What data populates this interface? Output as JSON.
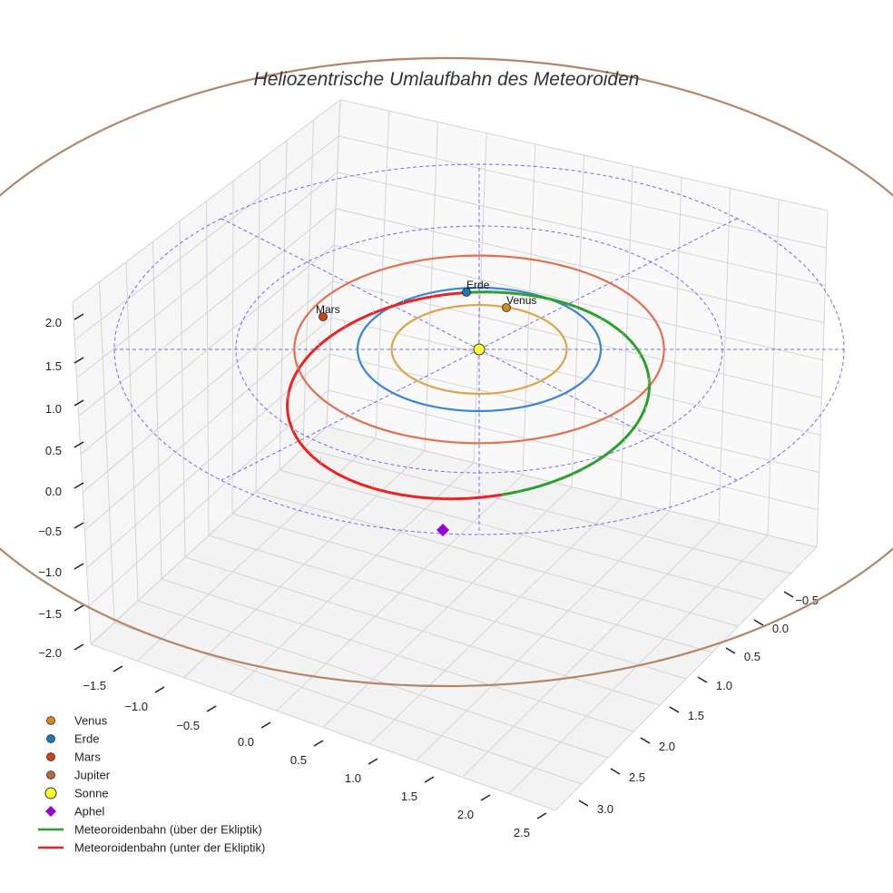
{
  "chart_data": {
    "type": "3d-line",
    "title": "Heliozentrische Umlaufbahn des Meteoroiden",
    "axes": {
      "x_ticks": [
        "−1.5",
        "−1.0",
        "−0.5",
        "0.0",
        "0.5",
        "1.0",
        "1.5",
        "2.0",
        "2.5"
      ],
      "y_ticks": [
        "−0.5",
        "0.0",
        "0.5",
        "1.0",
        "1.5",
        "2.0",
        "2.5",
        "3.0"
      ],
      "z_ticks": [
        "2.0",
        "1.5",
        "1.0",
        "0.5",
        "0.0",
        "−0.5",
        "−1.0",
        "−1.5",
        "−2.0"
      ],
      "xlim": [
        -1.8,
        2.6
      ],
      "ylim": [
        -0.8,
        3.2
      ],
      "zlim": [
        -2.2,
        2.2
      ]
    },
    "reference_grid": {
      "type": "polar-ecliptic",
      "radii_au": [
        1.0,
        2.0,
        3.0
      ],
      "spokes": 8,
      "color": "#5555ee"
    },
    "bodies": [
      {
        "name": "Venus",
        "orbit_radius_au": 0.72,
        "color": "#d08a22",
        "orbit_color": "#d9a64a",
        "position_label": "Venus"
      },
      {
        "name": "Erde",
        "orbit_radius_au": 1.0,
        "color": "#1f77b4",
        "orbit_color": "#3a86d6",
        "position_label": "Erde"
      },
      {
        "name": "Mars",
        "orbit_radius_au": 1.52,
        "color": "#cc4411",
        "orbit_color": "#e07050",
        "position_label": "Mars"
      },
      {
        "name": "Jupiter",
        "orbit_radius_au": 5.2,
        "color": "#b36a3a",
        "orbit_color": "#b3866a",
        "position_label": ""
      }
    ],
    "sun": {
      "name": "Sonne",
      "color": "#ffff33"
    },
    "meteoroid": {
      "perihelion_au": 0.92,
      "aphelion_au": 2.4,
      "inclination_deg": 8,
      "above_label": "Meteoroidenbahn (über der Ekliptik)",
      "above_color": "#2ca02c",
      "below_label": "Meteoroidenbahn (unter der Ekliptik)",
      "below_color": "#ee2222"
    },
    "aphel": {
      "name": "Aphel",
      "color": "#9400d3"
    },
    "legend": [
      {
        "label": "Venus",
        "kind": "dot",
        "color": "#d08a22"
      },
      {
        "label": "Erde",
        "kind": "dot",
        "color": "#1f77b4"
      },
      {
        "label": "Mars",
        "kind": "dot",
        "color": "#cc4411"
      },
      {
        "label": "Jupiter",
        "kind": "dot",
        "color": "#b36a3a"
      },
      {
        "label": "Sonne",
        "kind": "sun",
        "color": "#ffff33"
      },
      {
        "label": "Aphel",
        "kind": "diamond",
        "color": "#9400d3"
      },
      {
        "label": "Meteoroidenbahn (über der Ekliptik)",
        "kind": "line",
        "color": "#2ca02c"
      },
      {
        "label": "Meteoroidenbahn (unter der Ekliptik)",
        "kind": "line",
        "color": "#ee2222"
      }
    ],
    "legend_placement": "bottom-left"
  }
}
